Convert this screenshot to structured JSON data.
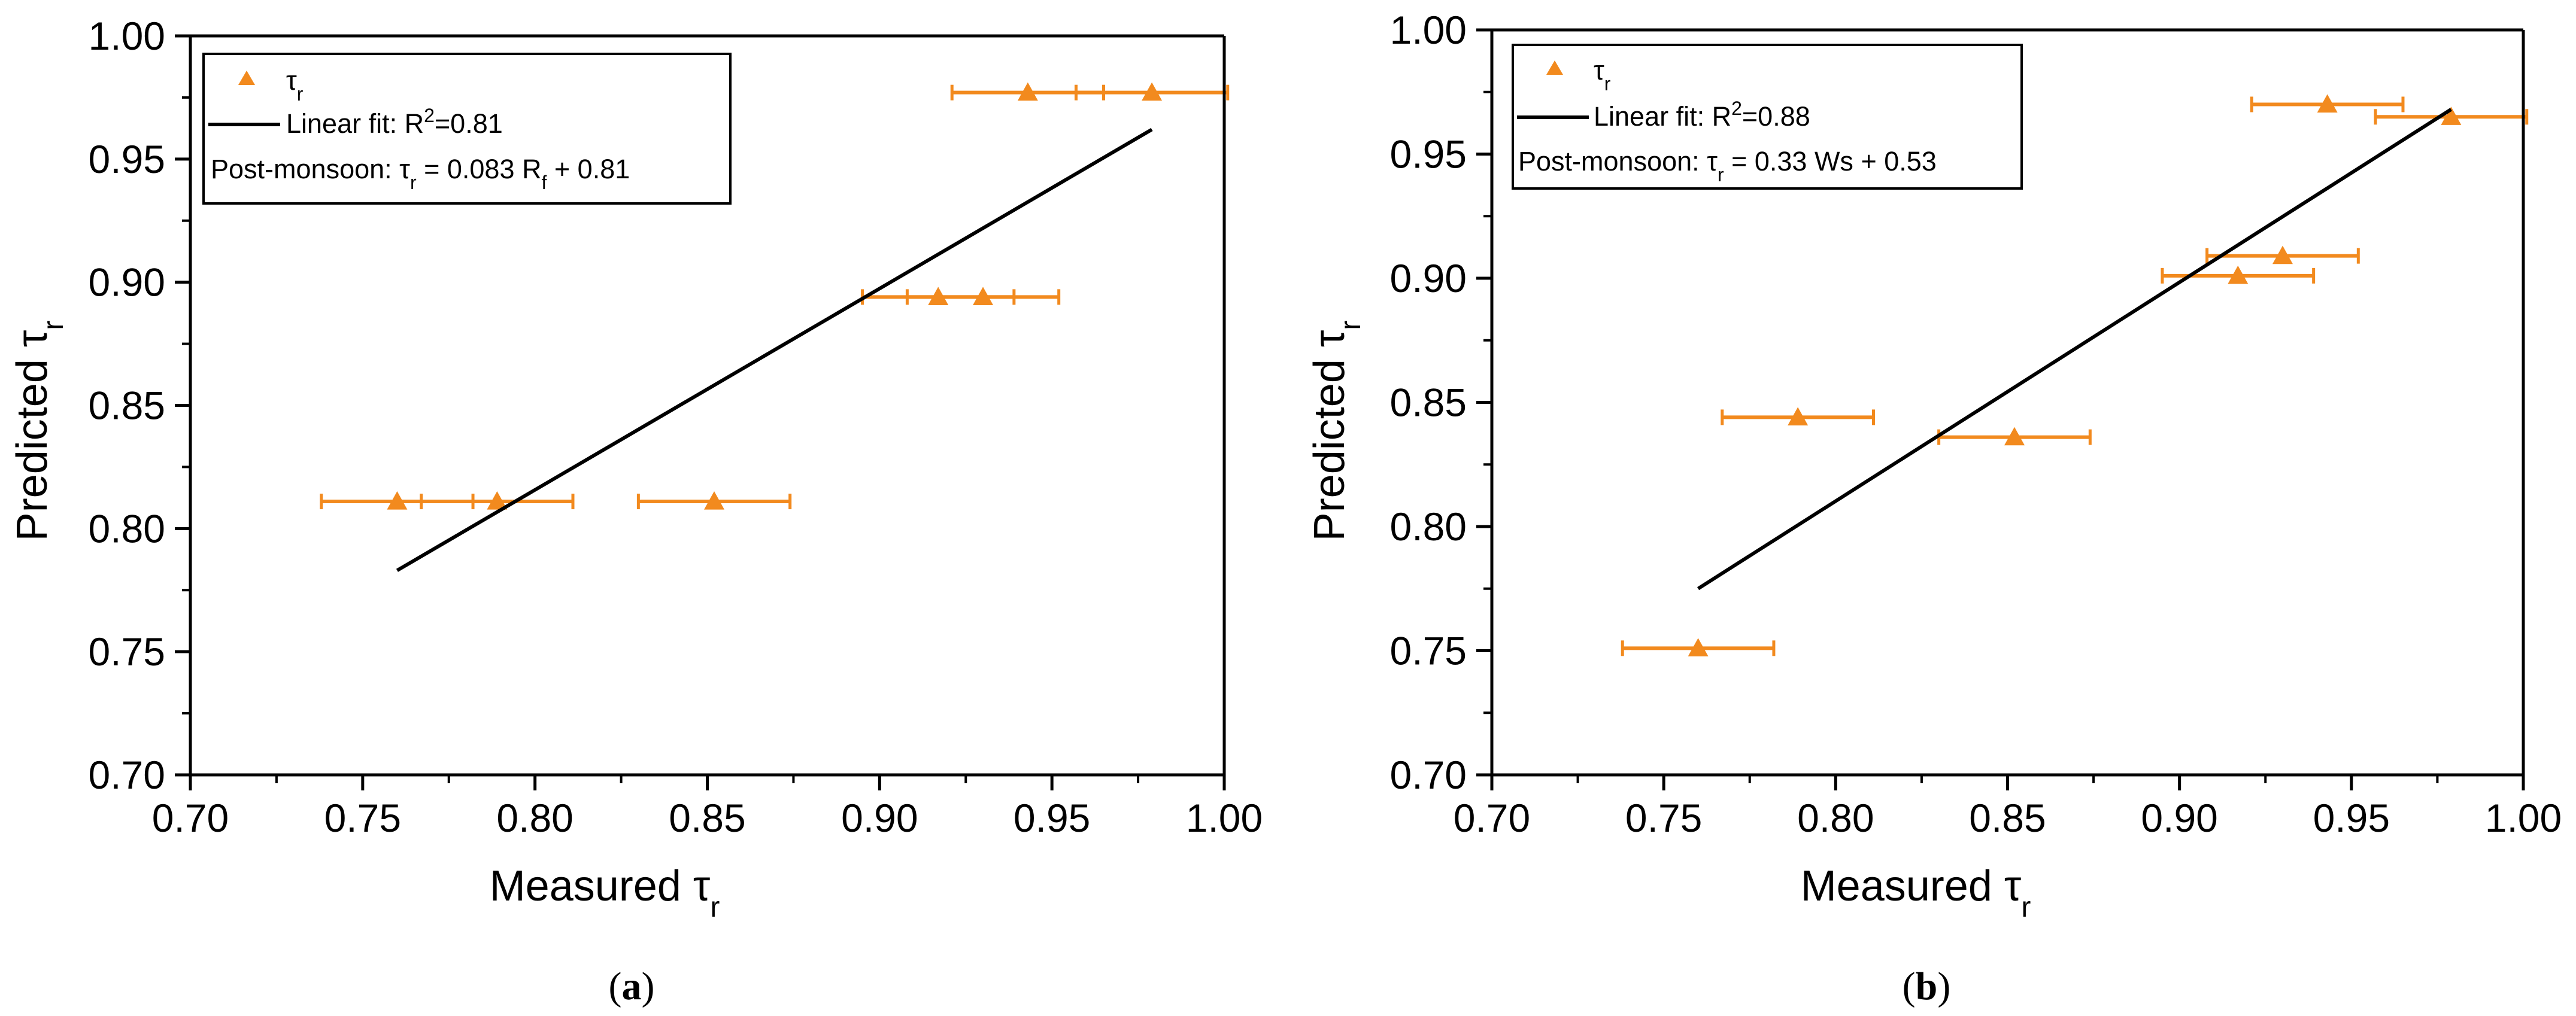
{
  "colors": {
    "marker": "#F28A1E",
    "fit_line": "#000000",
    "axis": "#000000"
  },
  "chart_data": [
    {
      "type": "scatter",
      "caption_letter": "a",
      "xlabel": "Measured",
      "ylabel": "Predicted",
      "symbol": "τ",
      "symbol_sub": "r",
      "xlim": [
        0.7,
        1.0
      ],
      "ylim": [
        0.7,
        1.0
      ],
      "xticks": [
        "0.70",
        "0.75",
        "0.80",
        "0.85",
        "0.90",
        "0.95",
        "1.00"
      ],
      "yticks": [
        "0.70",
        "0.75",
        "0.80",
        "0.85",
        "0.90",
        "0.95",
        "1.00"
      ],
      "points": [
        {
          "x": 0.76,
          "y": 0.811,
          "xerr": 0.022
        },
        {
          "x": 0.789,
          "y": 0.811,
          "xerr": 0.022
        },
        {
          "x": 0.852,
          "y": 0.811,
          "xerr": 0.022
        },
        {
          "x": 0.917,
          "y": 0.894,
          "xerr": 0.022
        },
        {
          "x": 0.93,
          "y": 0.894,
          "xerr": 0.022
        },
        {
          "x": 0.943,
          "y": 0.977,
          "xerr": 0.022
        },
        {
          "x": 0.979,
          "y": 0.977,
          "xerr": 0.022
        }
      ],
      "fit_line": {
        "x": [
          0.76,
          0.979
        ],
        "y": [
          0.783,
          0.962
        ]
      },
      "legend": {
        "series_label": "τ",
        "series_sub": "r",
        "fit_prefix": "Linear fit: R",
        "fit_sup": "2",
        "fit_value": "=0.81",
        "eq_prefix": "Post-monsoon: τ",
        "eq_sub": "r",
        "eq_mid": " = 0.083 R",
        "eq_sub2": "f",
        "eq_suffix": " + 0.81"
      }
    },
    {
      "type": "scatter",
      "caption_letter": "b",
      "xlabel": "Measured",
      "ylabel": "Predicted",
      "symbol": "τ",
      "symbol_sub": "r",
      "xlim": [
        0.7,
        1.0
      ],
      "ylim": [
        0.7,
        1.0
      ],
      "xticks": [
        "0.70",
        "0.75",
        "0.80",
        "0.85",
        "0.90",
        "0.95",
        "1.00"
      ],
      "yticks": [
        "0.70",
        "0.75",
        "0.80",
        "0.85",
        "0.90",
        "0.95",
        "1.00"
      ],
      "points": [
        {
          "x": 0.76,
          "y": 0.751,
          "xerr": 0.022
        },
        {
          "x": 0.789,
          "y": 0.844,
          "xerr": 0.022
        },
        {
          "x": 0.852,
          "y": 0.836,
          "xerr": 0.022
        },
        {
          "x": 0.917,
          "y": 0.901,
          "xerr": 0.022
        },
        {
          "x": 0.93,
          "y": 0.909,
          "xerr": 0.022
        },
        {
          "x": 0.943,
          "y": 0.97,
          "xerr": 0.022
        },
        {
          "x": 0.979,
          "y": 0.965,
          "xerr": 0.022
        }
      ],
      "fit_line": {
        "x": [
          0.76,
          0.979
        ],
        "y": [
          0.775,
          0.968
        ]
      },
      "legend": {
        "series_label": "τ",
        "series_sub": "r",
        "fit_prefix": "Linear fit: R",
        "fit_sup": "2",
        "fit_value": "=0.88",
        "eq_prefix": "Post-monsoon: τ",
        "eq_sub": "r",
        "eq_mid": " = 0.33 Ws + 0.53",
        "eq_sub2": "",
        "eq_suffix": ""
      }
    }
  ]
}
